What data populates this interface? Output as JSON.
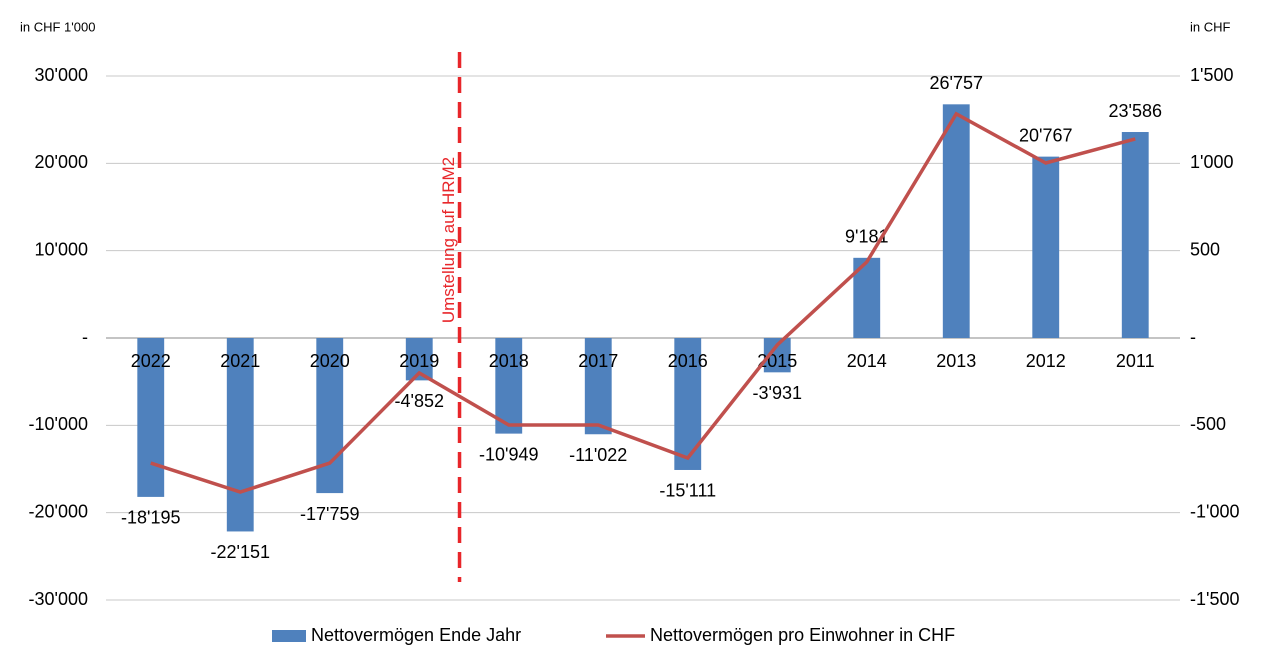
{
  "chart_data": {
    "type": "bar",
    "y_axis_label": "in CHF 1'000",
    "y2_axis_label": "in CHF",
    "annotation": "Umstellung auf HRM2",
    "categories": [
      "2022",
      "2021",
      "2020",
      "2019",
      "2018",
      "2017",
      "2016",
      "2015",
      "2014",
      "2013",
      "2012",
      "2011"
    ],
    "series": [
      {
        "name": "Nettovermögen Ende Jahr",
        "type": "bar",
        "color": "#4f81bd",
        "values": [
          -18195,
          -22151,
          -17759,
          -4852,
          -10949,
          -11022,
          -15111,
          -3931,
          9181,
          26757,
          20767,
          23586
        ],
        "value_labels": [
          "-18'195",
          "-22'151",
          "-17'759",
          "-4'852",
          "-10'949",
          "-11'022",
          "-15'111",
          "-3'931",
          "9'181",
          "26'757",
          "20'767",
          "23'586"
        ]
      },
      {
        "name": "Nettovermögen pro Einwohner in CHF",
        "type": "line",
        "color": "#c0504d",
        "axis": "y2",
        "values": [
          -716,
          -882,
          -716,
          -200,
          -498,
          -498,
          -687,
          -40,
          435,
          1283,
          1002,
          1140
        ]
      }
    ],
    "ylim": [
      -30000,
      30000
    ],
    "yticks": [
      {
        "value": -30000,
        "label": "-30'000"
      },
      {
        "value": -20000,
        "label": "-20'000"
      },
      {
        "value": -10000,
        "label": "-10'000"
      },
      {
        "value": 0,
        "label": "-"
      },
      {
        "value": 10000,
        "label": "10'000"
      },
      {
        "value": 20000,
        "label": "20'000"
      },
      {
        "value": 30000,
        "label": "30'000"
      }
    ],
    "y2lim": [
      -1500,
      1500
    ],
    "y2ticks": [
      {
        "value": -1500,
        "label": "-1'500"
      },
      {
        "value": -1000,
        "label": "-1'000"
      },
      -500,
      {
        "value": 0,
        "label": "-"
      },
      500,
      {
        "value": 1000,
        "label": "1'000"
      },
      {
        "value": 1500,
        "label": "1'500"
      }
    ],
    "grid": true,
    "legend": "bottom"
  }
}
